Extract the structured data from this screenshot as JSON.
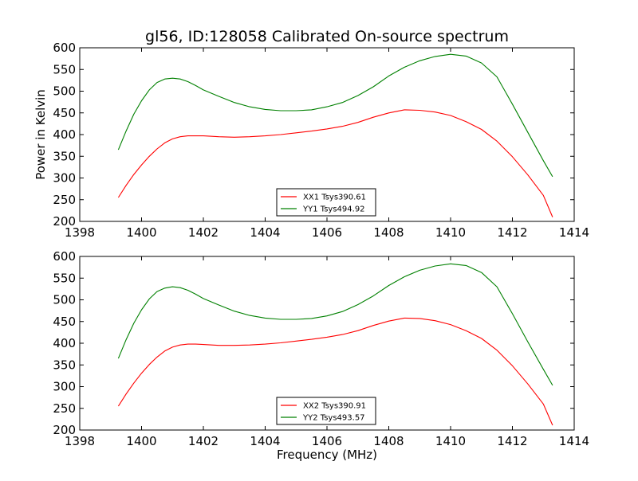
{
  "chart_data": [
    {
      "type": "line",
      "title": "gl56, ID:128058 Calibrated On-source spectrum",
      "xlabel": "",
      "ylabel": "Power in Kelvin",
      "xlim": [
        1398,
        1414
      ],
      "ylim": [
        200,
        600
      ],
      "xticks": [
        1398,
        1400,
        1402,
        1404,
        1406,
        1408,
        1410,
        1412,
        1414
      ],
      "yticks": [
        200,
        250,
        300,
        350,
        400,
        450,
        500,
        550,
        600
      ],
      "legend_position": "lower-center",
      "grid": false,
      "series": [
        {
          "name": "XX1 Tsys390.61",
          "color": "#ff0000",
          "x": [
            1399.25,
            1399.5,
            1399.75,
            1400.0,
            1400.25,
            1400.5,
            1400.75,
            1401.0,
            1401.25,
            1401.5,
            1401.75,
            1402.0,
            1402.5,
            1403.0,
            1403.5,
            1404.0,
            1404.5,
            1405.0,
            1405.5,
            1406.0,
            1406.5,
            1407.0,
            1407.5,
            1408.0,
            1408.5,
            1409.0,
            1409.5,
            1410.0,
            1410.5,
            1411.0,
            1411.5,
            1412.0,
            1412.5,
            1413.0,
            1413.3
          ],
          "y": [
            255,
            283,
            308,
            330,
            350,
            367,
            381,
            390,
            395,
            397,
            397,
            397,
            395,
            394,
            395,
            397,
            400,
            404,
            408,
            413,
            419,
            428,
            440,
            450,
            457,
            456,
            452,
            444,
            430,
            412,
            385,
            349,
            307,
            260,
            210
          ]
        },
        {
          "name": "YY1 Tsys494.92",
          "color": "#008000",
          "x": [
            1399.25,
            1399.5,
            1399.75,
            1400.0,
            1400.25,
            1400.5,
            1400.75,
            1401.0,
            1401.25,
            1401.5,
            1401.75,
            1402.0,
            1402.5,
            1403.0,
            1403.5,
            1404.0,
            1404.5,
            1405.0,
            1405.5,
            1406.0,
            1406.5,
            1407.0,
            1407.5,
            1408.0,
            1408.5,
            1409.0,
            1409.5,
            1410.0,
            1410.5,
            1411.0,
            1411.5,
            1412.0,
            1412.5,
            1413.0,
            1413.3
          ],
          "y": [
            365,
            408,
            447,
            478,
            503,
            520,
            528,
            530,
            528,
            522,
            513,
            503,
            488,
            474,
            464,
            458,
            455,
            455,
            457,
            464,
            474,
            490,
            510,
            535,
            555,
            570,
            580,
            585,
            581,
            565,
            533,
            470,
            405,
            340,
            303
          ]
        }
      ]
    },
    {
      "type": "line",
      "title": "",
      "xlabel": "Frequency (MHz)",
      "ylabel": "",
      "xlim": [
        1398,
        1414
      ],
      "ylim": [
        200,
        600
      ],
      "xticks": [
        1398,
        1400,
        1402,
        1404,
        1406,
        1408,
        1410,
        1412,
        1414
      ],
      "yticks": [
        200,
        250,
        300,
        350,
        400,
        450,
        500,
        550,
        600
      ],
      "legend_position": "lower-center",
      "grid": false,
      "series": [
        {
          "name": "XX2 Tsys390.91",
          "color": "#ff0000",
          "x": [
            1399.25,
            1399.5,
            1399.75,
            1400.0,
            1400.25,
            1400.5,
            1400.75,
            1401.0,
            1401.25,
            1401.5,
            1401.75,
            1402.0,
            1402.5,
            1403.0,
            1403.5,
            1404.0,
            1404.5,
            1405.0,
            1405.5,
            1406.0,
            1406.5,
            1407.0,
            1407.5,
            1408.0,
            1408.5,
            1409.0,
            1409.5,
            1410.0,
            1410.5,
            1411.0,
            1411.5,
            1412.0,
            1412.5,
            1413.0,
            1413.3
          ],
          "y": [
            255,
            283,
            308,
            331,
            351,
            368,
            382,
            391,
            396,
            398,
            398,
            397,
            395,
            395,
            396,
            398,
            401,
            405,
            409,
            414,
            420,
            429,
            441,
            451,
            458,
            457,
            452,
            443,
            429,
            411,
            384,
            348,
            306,
            260,
            211
          ]
        },
        {
          "name": "YY2 Tsys493.57",
          "color": "#008000",
          "x": [
            1399.25,
            1399.5,
            1399.75,
            1400.0,
            1400.25,
            1400.5,
            1400.75,
            1401.0,
            1401.25,
            1401.5,
            1401.75,
            1402.0,
            1402.5,
            1403.0,
            1403.5,
            1404.0,
            1404.5,
            1405.0,
            1405.5,
            1406.0,
            1406.5,
            1407.0,
            1407.5,
            1408.0,
            1408.5,
            1409.0,
            1409.5,
            1410.0,
            1410.5,
            1411.0,
            1411.5,
            1412.0,
            1412.5,
            1413.0,
            1413.3
          ],
          "y": [
            365,
            408,
            446,
            477,
            502,
            519,
            527,
            530,
            528,
            522,
            513,
            503,
            488,
            474,
            464,
            458,
            455,
            455,
            457,
            463,
            473,
            489,
            509,
            533,
            553,
            568,
            578,
            583,
            579,
            563,
            530,
            468,
            403,
            340,
            303
          ]
        }
      ]
    }
  ]
}
